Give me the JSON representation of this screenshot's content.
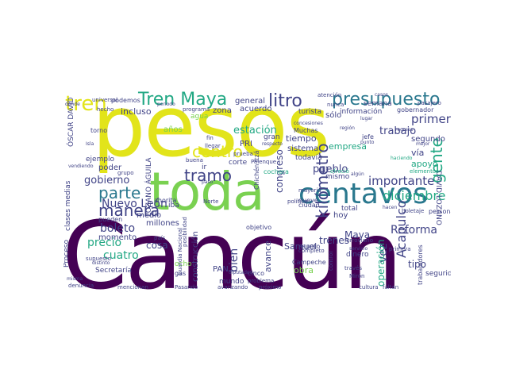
{
  "palette": {
    "yellow": "#e2e41a",
    "green": "#7ad151",
    "teal": "#22a884",
    "blue": "#2a788e",
    "indigo": "#414487",
    "purple": "#440154"
  },
  "words": [
    {
      "text": "Cancún",
      "color": "purple"
    },
    {
      "text": "pesos",
      "color": "yellow"
    },
    {
      "text": "toda",
      "color": "green"
    },
    {
      "text": "centavos",
      "color": "blue"
    },
    {
      "text": "Tren Maya",
      "color": "teal"
    },
    {
      "text": "tren",
      "color": "yellow"
    },
    {
      "text": "litro",
      "color": "indigo"
    },
    {
      "text": "presupuesto",
      "color": "blue"
    },
    {
      "text": "manera",
      "color": "indigo"
    },
    {
      "text": "centro",
      "color": "yellow"
    },
    {
      "text": "tramo",
      "color": "indigo"
    },
    {
      "text": "parte",
      "color": "blue"
    },
    {
      "text": "kilómetro",
      "color": "indigo"
    },
    {
      "text": "gente",
      "color": "teal"
    },
    {
      "text": "diciembre",
      "color": "teal"
    },
    {
      "text": "importante",
      "color": "indigo"
    },
    {
      "text": "primero",
      "color": "indigo"
    },
    {
      "text": "Acapulco",
      "color": "indigo"
    },
    {
      "text": "boleto",
      "color": "indigo"
    },
    {
      "text": "precio",
      "color": "teal"
    },
    {
      "text": "Nuevo León",
      "color": "indigo"
    },
    {
      "text": "cuatro",
      "color": "teal"
    },
    {
      "text": "gobierno",
      "color": "indigo"
    },
    {
      "text": "bien",
      "color": "indigo"
    },
    {
      "text": "Reforma",
      "color": "indigo"
    },
    {
      "text": "trabajo",
      "color": "indigo"
    },
    {
      "text": "estación",
      "color": "teal"
    },
    {
      "text": "congreso",
      "color": "indigo"
    },
    {
      "text": "pueblo",
      "color": "indigo"
    },
    {
      "text": "trenes",
      "color": "indigo"
    },
    {
      "text": "Samuel",
      "color": "indigo"
    },
    {
      "text": "avance",
      "color": "indigo"
    },
    {
      "text": "Maya",
      "color": "indigo"
    },
    {
      "text": "vez",
      "color": "indigo"
    },
    {
      "text": "operación",
      "color": "teal"
    },
    {
      "text": "tipo",
      "color": "indigo"
    },
    {
      "text": "obra",
      "color": "green"
    },
    {
      "text": "cosa",
      "color": "indigo"
    },
    {
      "text": "incluso",
      "color": "indigo"
    },
    {
      "text": "general",
      "color": "indigo"
    },
    {
      "text": "tiempo",
      "color": "indigo"
    },
    {
      "text": "sólo",
      "color": "indigo"
    },
    {
      "text": "segundo",
      "color": "indigo"
    },
    {
      "text": "vía",
      "color": "indigo"
    },
    {
      "text": "apoyo",
      "color": "teal"
    },
    {
      "text": "empresa",
      "color": "teal"
    },
    {
      "text": "sistema",
      "color": "indigo"
    },
    {
      "text": "PRI",
      "color": "indigo"
    },
    {
      "text": "gran",
      "color": "indigo"
    },
    {
      "text": "zona",
      "color": "indigo"
    },
    {
      "text": "años",
      "color": "green"
    },
    {
      "text": "LOZANO ÁGUILA",
      "color": "indigo"
    },
    {
      "text": "DAVID LOZANO",
      "color": "indigo"
    },
    {
      "text": "ÓSCAR DAVID",
      "color": "indigo"
    },
    {
      "text": "Proceso",
      "color": "indigo"
    },
    {
      "text": "clases medias",
      "color": "indigo"
    },
    {
      "text": "momento",
      "color": "indigo"
    },
    {
      "text": "millones",
      "color": "indigo"
    },
    {
      "text": "medio",
      "color": "indigo"
    },
    {
      "text": "construcción",
      "color": "indigo"
    },
    {
      "text": "PAN",
      "color": "indigo"
    },
    {
      "text": "mundo",
      "color": "indigo"
    },
    {
      "text": "Secretaría",
      "color": "indigo"
    },
    {
      "text": "poder",
      "color": "indigo"
    },
    {
      "text": "ejemplo",
      "color": "indigo"
    },
    {
      "text": "podemos",
      "color": "indigo"
    },
    {
      "text": "acuerdo",
      "color": "indigo"
    },
    {
      "text": "información",
      "color": "indigo"
    },
    {
      "text": "semana",
      "color": "indigo"
    },
    {
      "text": "Muchas",
      "color": "indigo"
    },
    {
      "text": "turista",
      "color": "indigo"
    },
    {
      "text": "dinero",
      "color": "indigo"
    },
    {
      "text": "seguridad",
      "color": "indigo"
    },
    {
      "text": "trabajadores",
      "color": "indigo"
    },
    {
      "text": "hoy",
      "color": "indigo"
    },
    {
      "text": "total",
      "color": "indigo"
    },
    {
      "text": "corte",
      "color": "indigo"
    },
    {
      "text": "ciudad",
      "color": "indigo"
    },
    {
      "text": "Campeche",
      "color": "indigo"
    },
    {
      "text": "mismo",
      "color": "indigo"
    },
    {
      "text": "jefe",
      "color": "indigo"
    },
    {
      "text": "todavía",
      "color": "indigo"
    },
    {
      "text": "nueve",
      "color": "indigo"
    },
    {
      "text": "ir",
      "color": "indigo"
    },
    {
      "text": "iba",
      "color": "indigo"
    },
    {
      "text": "ocho",
      "color": "green"
    },
    {
      "text": "agua",
      "color": "green"
    },
    {
      "text": "cinco",
      "color": "indigo"
    },
    {
      "text": "gas",
      "color": "indigo"
    },
    {
      "text": "persona",
      "color": "indigo"
    },
    {
      "text": "pueden",
      "color": "indigo"
    },
    {
      "text": "torno",
      "color": "indigo"
    },
    {
      "text": "objetivo",
      "color": "indigo"
    },
    {
      "text": "asunto",
      "color": "indigo"
    },
    {
      "text": "cochera",
      "color": "teal"
    },
    {
      "text": "gobernador",
      "color": "indigo"
    },
    {
      "text": "atención",
      "color": "indigo"
    },
    {
      "text": "universal",
      "color": "indigo"
    },
    {
      "text": "programa",
      "color": "indigo"
    },
    {
      "text": "hecho",
      "color": "indigo"
    },
    {
      "text": "ahorita",
      "color": "indigo"
    },
    {
      "text": "completo",
      "color": "indigo"
    },
    {
      "text": "denuncia",
      "color": "indigo"
    },
    {
      "text": "mencionan",
      "color": "indigo"
    },
    {
      "text": "Pasando",
      "color": "indigo"
    },
    {
      "text": "avanzando",
      "color": "indigo"
    },
    {
      "text": "problema",
      "color": "indigo"
    },
    {
      "text": "próximo",
      "color": "indigo"
    },
    {
      "text": "cultura",
      "color": "indigo"
    },
    {
      "text": "faltan",
      "color": "indigo"
    },
    {
      "text": "Mirón",
      "color": "indigo"
    },
    {
      "text": "llegar",
      "color": "indigo"
    },
    {
      "text": "prueba",
      "color": "indigo"
    },
    {
      "text": "buena",
      "color": "indigo"
    },
    {
      "text": "país",
      "color": "indigo"
    },
    {
      "text": "supuesto",
      "color": "indigo"
    },
    {
      "text": "distinto",
      "color": "indigo"
    },
    {
      "text": "ferroviario",
      "color": "indigo"
    },
    {
      "text": "boletaje",
      "color": "indigo"
    },
    {
      "text": "elementos",
      "color": "teal"
    },
    {
      "text": "mayoría",
      "color": "indigo"
    },
    {
      "text": "través",
      "color": "indigo"
    },
    {
      "text": "Norte",
      "color": "indigo"
    },
    {
      "text": "primera",
      "color": "indigo"
    },
    {
      "text": "ofreció",
      "color": "teal"
    },
    {
      "text": "regreso",
      "color": "indigo"
    },
    {
      "text": "político",
      "color": "indigo"
    },
    {
      "text": "casos",
      "color": "indigo"
    },
    {
      "text": "nunca",
      "color": "indigo"
    },
    {
      "text": "región",
      "color": "indigo"
    },
    {
      "text": "pasajero",
      "color": "indigo"
    },
    {
      "text": "grupo",
      "color": "indigo"
    },
    {
      "text": "Chichén Itzá",
      "color": "indigo"
    },
    {
      "text": "Palenque",
      "color": "indigo"
    },
    {
      "text": "haciendo",
      "color": "teal"
    },
    {
      "text": "misma",
      "color": "indigo"
    },
    {
      "text": "concesiones",
      "color": "indigo"
    },
    {
      "text": "respecto",
      "color": "indigo"
    },
    {
      "text": "fin",
      "color": "indigo"
    },
    {
      "text": "mejor",
      "color": "indigo"
    },
    {
      "text": "punto",
      "color": "indigo"
    },
    {
      "text": "lugar",
      "color": "indigo"
    },
    {
      "text": "vendiendo",
      "color": "indigo"
    },
    {
      "text": "posibilidad",
      "color": "indigo"
    },
    {
      "text": "Guardia Nacional",
      "color": "indigo"
    },
    {
      "text": "tiempo",
      "color": "indigo"
    },
    {
      "text": "dónde",
      "color": "indigo"
    },
    {
      "text": "periodo",
      "color": "indigo"
    },
    {
      "text": "diputados",
      "color": "indigo"
    },
    {
      "text": "algún",
      "color": "indigo"
    },
    {
      "text": "hacen",
      "color": "indigo"
    },
    {
      "text": "servicio",
      "color": "indigo"
    },
    {
      "text": "noviembre",
      "color": "indigo"
    },
    {
      "text": "Isla",
      "color": "indigo"
    },
    {
      "text": "paso",
      "color": "indigo"
    },
    {
      "text": "control",
      "color": "indigo"
    }
  ]
}
